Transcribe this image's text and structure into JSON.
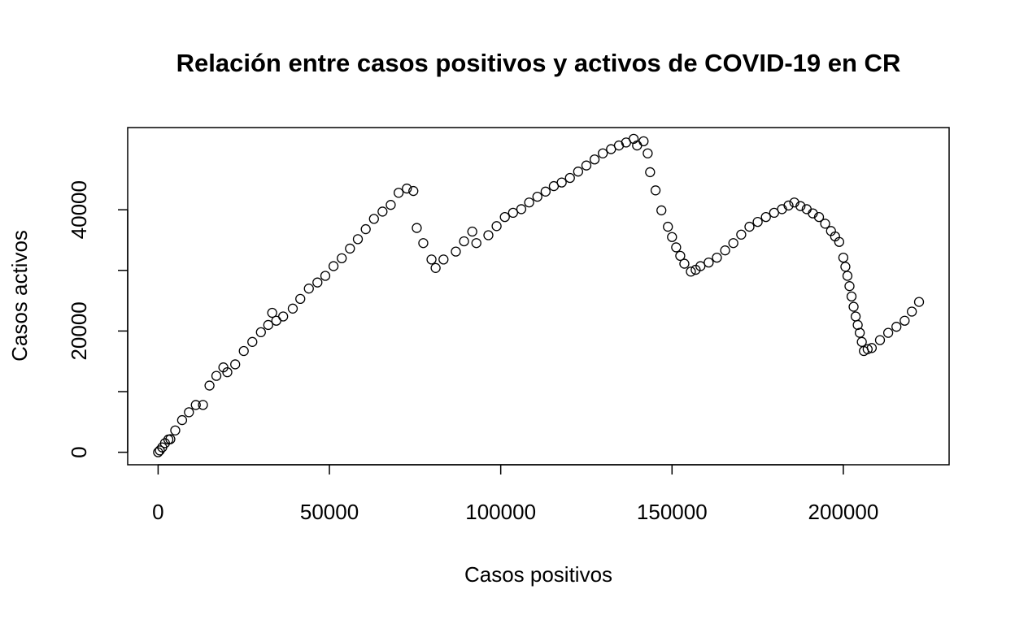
{
  "chart_data": {
    "type": "scatter",
    "title": "Relación entre casos positivos y activos de COVID-19 en CR",
    "x_label": "Casos positivos",
    "y_label": "Casos activos",
    "xlim": [
      -8880,
      230880
    ],
    "ylim": [
      -2060,
      53560
    ],
    "xticks": [
      0,
      50000,
      100000,
      150000,
      200000
    ],
    "yticks": [
      0,
      10000,
      20000,
      30000,
      40000
    ],
    "series": [
      {
        "color": "#000000",
        "x": [
          0,
          500,
          1200,
          2000,
          3000,
          3571,
          5000,
          7000,
          9000,
          11000,
          13095,
          15000,
          17000,
          19048,
          20200,
          22500,
          25000,
          27500,
          30000,
          32143,
          33300,
          34500,
          36500,
          39300,
          41500,
          44000,
          46500,
          48800,
          51200,
          53600,
          56000,
          58300,
          60600,
          63000,
          65500,
          67900,
          70200,
          72600,
          74500,
          75500,
          77400,
          79800,
          81000,
          83300,
          86900,
          89300,
          91700,
          92900,
          96400,
          98800,
          101200,
          103600,
          106000,
          108300,
          110700,
          113100,
          115500,
          117800,
          120200,
          122600,
          125000,
          127400,
          129800,
          132200,
          134500,
          136600,
          138800,
          139800,
          141700,
          142900,
          143600,
          145200,
          146900,
          148800,
          150000,
          151200,
          152400,
          153600,
          155500,
          156900,
          158300,
          160700,
          163100,
          165500,
          167900,
          170200,
          172600,
          175000,
          177400,
          179800,
          182100,
          184000,
          185700,
          187500,
          189300,
          191100,
          192900,
          194700,
          196400,
          197600,
          198800,
          200000,
          200600,
          201200,
          201800,
          202400,
          203000,
          203600,
          204200,
          204800,
          205400,
          206000,
          207100,
          208300,
          210700,
          213100,
          215500,
          217900,
          220000,
          222100
        ],
        "values": [
          0,
          300,
          800,
          1500,
          2100,
          2155,
          3600,
          5300,
          6600,
          7800,
          7811,
          11000,
          12600,
          14000,
          13200,
          14500,
          16700,
          18200,
          19800,
          21000,
          23000,
          21700,
          22400,
          23700,
          25300,
          27000,
          28000,
          29100,
          30700,
          32000,
          33600,
          35150,
          36800,
          38500,
          39700,
          40800,
          42800,
          43500,
          43100,
          37000,
          34500,
          31800,
          30400,
          31800,
          33100,
          34800,
          36400,
          34500,
          35800,
          37300,
          38800,
          39500,
          40100,
          41200,
          42150,
          43000,
          43900,
          44500,
          45250,
          46300,
          47300,
          48300,
          49300,
          50000,
          50600,
          51100,
          51700,
          50600,
          51300,
          49300,
          46200,
          43200,
          39900,
          37200,
          35500,
          33800,
          32400,
          31100,
          29800,
          30100,
          30700,
          31300,
          32100,
          33300,
          34500,
          35900,
          37200,
          38000,
          38800,
          39500,
          40100,
          40700,
          41200,
          40600,
          40100,
          39400,
          38800,
          37700,
          36500,
          35600,
          34700,
          32100,
          30600,
          29100,
          27400,
          25700,
          24000,
          22400,
          21000,
          19700,
          18200,
          16700,
          17000,
          17200,
          18500,
          19700,
          20700,
          21700,
          23200,
          24800
        ]
      }
    ]
  }
}
